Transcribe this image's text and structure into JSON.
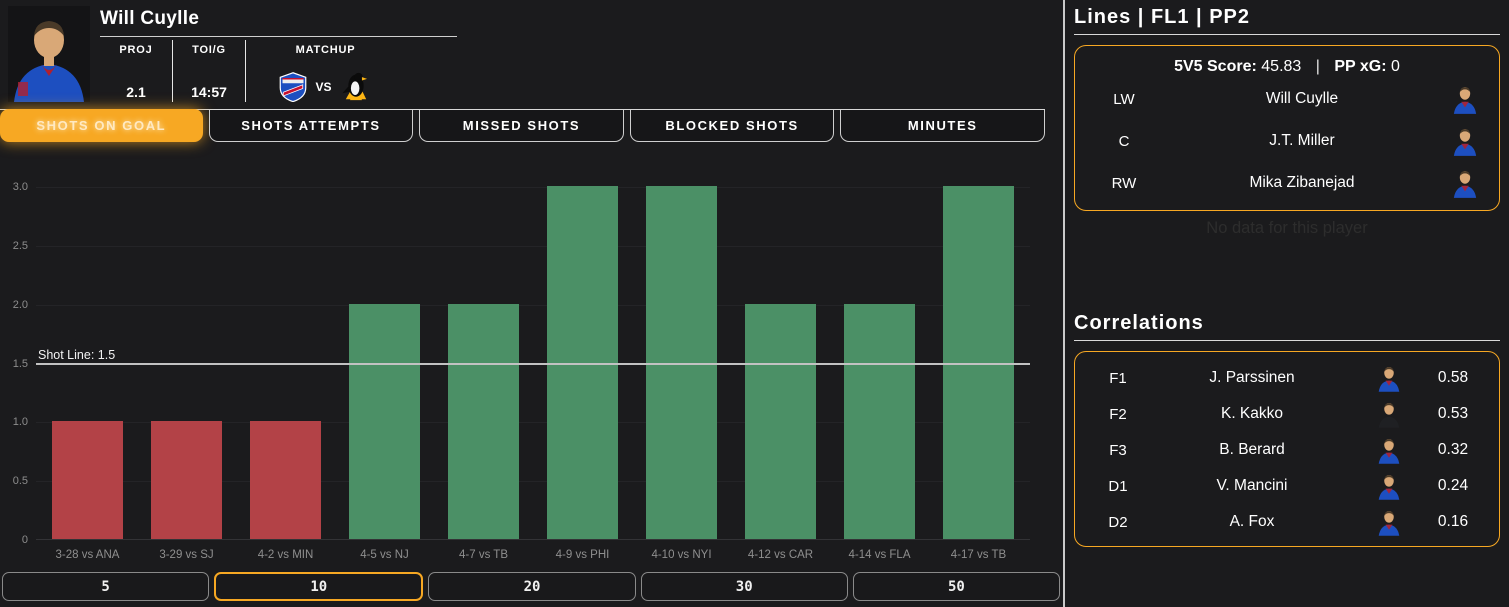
{
  "colors": {
    "background": "#1b1b1d",
    "accent_orange": "#f7a823",
    "bar_below_line": "#b34247",
    "bar_above_line": "#4b9066",
    "gridline": "#242427",
    "axis_text": "#8d8d8d",
    "shot_line": "#c2c2c2",
    "rangers_blue": "#1d4fc0",
    "penguins_gold": "#fcb514",
    "dark_jersey": "#1f2023"
  },
  "player_header": {
    "name": "Will Cuylle",
    "stats": [
      {
        "label": "PROJ",
        "value": "2.1"
      },
      {
        "label": "TOI/G",
        "value": "14:57"
      },
      {
        "label": "MATCHUP",
        "value": ""
      }
    ],
    "matchup": {
      "home_team": "NYR",
      "vs_label": "VS",
      "away_team": "PIT"
    }
  },
  "tabs": [
    {
      "label": "SHOTS ON GOAL",
      "active": true
    },
    {
      "label": "SHOTS ATTEMPTS",
      "active": false
    },
    {
      "label": "MISSED SHOTS",
      "active": false
    },
    {
      "label": "BLOCKED SHOTS",
      "active": false
    },
    {
      "label": "MINUTES",
      "active": false
    }
  ],
  "chart_data": {
    "type": "bar",
    "title": "",
    "xlabel": "",
    "ylabel": "",
    "categories": [
      "3-28 vs ANA",
      "3-29 vs SJ",
      "4-2 vs MIN",
      "4-5 vs NJ",
      "4-7 vs TB",
      "4-9 vs PHI",
      "4-10 vs NYI",
      "4-12 vs CAR",
      "4-14 vs FLA",
      "4-17 vs TB"
    ],
    "values": [
      1,
      1,
      1,
      2,
      2,
      3,
      3,
      2,
      2,
      3
    ],
    "ylim": [
      0,
      3.23
    ],
    "yticks": [
      {
        "value": 3.0,
        "label": "3.0"
      },
      {
        "value": 2.5,
        "label": "2.5"
      },
      {
        "value": 2.0,
        "label": "2.0"
      },
      {
        "value": 1.5,
        "label": "1.5"
      },
      {
        "value": 1.0,
        "label": "1.0"
      },
      {
        "value": 0.5,
        "label": "0.5"
      },
      {
        "value": 0,
        "label": "0"
      }
    ],
    "grid": true,
    "legend": false,
    "shot_line": {
      "label": "Shot Line: 1.5",
      "value": 1.5
    },
    "color_rule": {
      "below_line": "#b34247",
      "above_line": "#4b9066"
    }
  },
  "range_buttons": [
    {
      "label": "5",
      "active": false
    },
    {
      "label": "10",
      "active": true
    },
    {
      "label": "20",
      "active": false
    },
    {
      "label": "30",
      "active": false
    },
    {
      "label": "50",
      "active": false
    }
  ],
  "lines_panel": {
    "title": "Lines | FL1 | PP2",
    "score_label": "5V5 Score:",
    "score_value": "45.83",
    "separator": "|",
    "ppxg_label": "PP xG:",
    "ppxg_value": "0",
    "players": [
      {
        "pos": "LW",
        "name": "Will Cuylle",
        "jersey": "#1d4fc0"
      },
      {
        "pos": "C",
        "name": "J.T. Miller",
        "jersey": "#1d4fc0"
      },
      {
        "pos": "RW",
        "name": "Mika Zibanejad",
        "jersey": "#1d4fc0"
      }
    ],
    "no_data_text": "No data for this player"
  },
  "correlations_panel": {
    "title": "Correlations",
    "rows": [
      {
        "pos": "F1",
        "name": "J. Parssinen",
        "value": "0.58",
        "jersey": "#1d4fc0"
      },
      {
        "pos": "F2",
        "name": "K. Kakko",
        "value": "0.53",
        "jersey": "#1f2023"
      },
      {
        "pos": "F3",
        "name": "B. Berard",
        "value": "0.32",
        "jersey": "#1d4fc0"
      },
      {
        "pos": "D1",
        "name": "V. Mancini",
        "value": "0.24",
        "jersey": "#1d4fc0"
      },
      {
        "pos": "D2",
        "name": "A. Fox",
        "value": "0.16",
        "jersey": "#1d4fc0"
      }
    ]
  }
}
